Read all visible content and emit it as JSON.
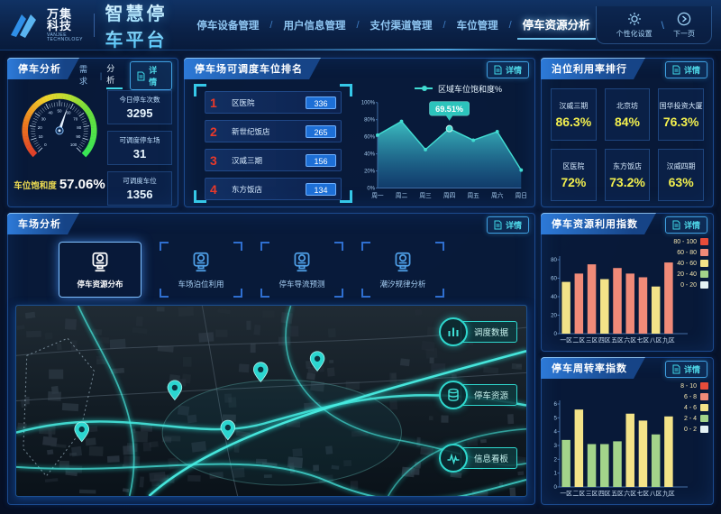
{
  "header": {
    "company": "万集科技",
    "company_sub": "VANJEE TECHNOLOGY",
    "product": "智慧停车平台",
    "nav": [
      {
        "label": "停车设备管理",
        "active": false
      },
      {
        "label": "用户信息管理",
        "active": false
      },
      {
        "label": "支付渠道管理",
        "active": false
      },
      {
        "label": "车位管理",
        "active": false
      },
      {
        "label": "停车资源分析",
        "active": true
      }
    ],
    "nav_separator": "/",
    "actions": [
      {
        "label": "个性化设置",
        "icon": "gear-icon"
      },
      {
        "label": "下一页",
        "icon": "next-page-icon"
      }
    ],
    "actions_separator": "\\"
  },
  "detail_label": "详情",
  "parking_analysis": {
    "title": "停车分析",
    "mini_tabs": [
      {
        "label": "需求",
        "active": false
      },
      {
        "label": "分析",
        "active": true
      }
    ],
    "gauge": {
      "label": "车位饱和度",
      "display": "57.06%",
      "value": 57.06,
      "min": 0,
      "max": 100
    },
    "stats": [
      {
        "label": "今日停车次数",
        "value": "3295"
      },
      {
        "label": "可调度停车场",
        "value": "31"
      },
      {
        "label": "可调度车位",
        "value": "1356"
      }
    ]
  },
  "dispatch_ranking": {
    "title": "停车场可调度车位排名",
    "items": [
      {
        "rank": "1",
        "name": "区医院",
        "value": "336"
      },
      {
        "rank": "2",
        "name": "新世纪饭店",
        "value": "265"
      },
      {
        "rank": "3",
        "name": "汉威三期",
        "value": "156"
      },
      {
        "rank": "4",
        "name": "东方饭店",
        "value": "134"
      }
    ]
  },
  "berth_ranking": {
    "title": "泊位利用率排行",
    "items": [
      {
        "name": "汉威三期",
        "value": "86.3%"
      },
      {
        "name": "北京坊",
        "value": "84%"
      },
      {
        "name": "国华投资大厦",
        "value": "76.3%"
      },
      {
        "name": "区医院",
        "value": "72%"
      },
      {
        "name": "东方饭店",
        "value": "73.2%"
      },
      {
        "name": "汉威四期",
        "value": "63%"
      }
    ]
  },
  "lot_analysis": {
    "title": "车场分析",
    "tabs": [
      {
        "label": "停车资源分布",
        "icon": "parking-meter-icon",
        "active": true
      },
      {
        "label": "车场泊位利用",
        "icon": "parking-meter-icon",
        "active": false
      },
      {
        "label": "停车导流预测",
        "icon": "parking-meter-icon",
        "active": false
      },
      {
        "label": "潮汐规律分析",
        "icon": "parking-meter-icon",
        "active": false
      }
    ],
    "map_buttons": [
      {
        "label": "调度数据",
        "icon": "bar-chart-icon"
      },
      {
        "label": "停车资源",
        "icon": "database-icon"
      },
      {
        "label": "信息看板",
        "icon": "pulse-icon"
      }
    ]
  },
  "chart_data": [
    {
      "id": "region_saturation",
      "type": "area",
      "title": "区域车位饱和度%",
      "x": [
        "周一",
        "周二",
        "周三",
        "周四",
        "周五",
        "周六",
        "周日"
      ],
      "values": [
        62,
        78,
        45,
        69.51,
        56,
        66,
        21
      ],
      "ylim": [
        0,
        100
      ],
      "ytick_step": 20,
      "ytick_suffix": "%",
      "line_color": "#41dcd2",
      "tooltip": {
        "index": 3,
        "text": "69.51%"
      },
      "legend_position": "top-right",
      "grid": false
    },
    {
      "id": "resource_index",
      "type": "bar",
      "title": "停车资源利用指数",
      "categories": [
        "一区",
        "二区",
        "三区",
        "四区",
        "五区",
        "六区",
        "七区",
        "八区",
        "九区"
      ],
      "values": [
        56,
        65,
        75,
        59,
        71,
        65,
        61,
        51,
        77
      ],
      "ylim": [
        0,
        80
      ],
      "ytick_step": 20,
      "legend_position": "top-right",
      "grid": false,
      "legend": [
        {
          "label": "80 - 100",
          "range": [
            80,
            100
          ],
          "color": "#e84c3a"
        },
        {
          "label": "60 - 80",
          "range": [
            60,
            80
          ],
          "color": "#f08a78"
        },
        {
          "label": "40 - 60",
          "range": [
            40,
            60
          ],
          "color": "#f3e388"
        },
        {
          "label": "20 - 40",
          "range": [
            20,
            40
          ],
          "color": "#a3d48a"
        },
        {
          "label": "0 - 20",
          "range": [
            0,
            20
          ],
          "color": "#e4f2f4"
        }
      ]
    },
    {
      "id": "turnover_index",
      "type": "bar",
      "title": "停车周转率指数",
      "categories": [
        "一区",
        "二区",
        "三区",
        "四区",
        "五区",
        "六区",
        "七区",
        "八区",
        "九区"
      ],
      "values": [
        3.4,
        5.6,
        3.1,
        3.1,
        3.3,
        5.3,
        4.8,
        3.8,
        5.1
      ],
      "ylim": [
        0,
        6
      ],
      "ytick_step": 1,
      "legend_position": "top-right",
      "grid": false,
      "legend": [
        {
          "label": "8 - 10",
          "range": [
            8,
            10
          ],
          "color": "#e84c3a"
        },
        {
          "label": "6 - 8",
          "range": [
            6,
            8
          ],
          "color": "#f08a78"
        },
        {
          "label": "4 - 6",
          "range": [
            4,
            6
          ],
          "color": "#f3e388"
        },
        {
          "label": "2 - 4",
          "range": [
            2,
            4
          ],
          "color": "#a3d48a"
        },
        {
          "label": "0 - 2",
          "range": [
            0,
            2
          ],
          "color": "#e4f2f4"
        }
      ]
    }
  ]
}
